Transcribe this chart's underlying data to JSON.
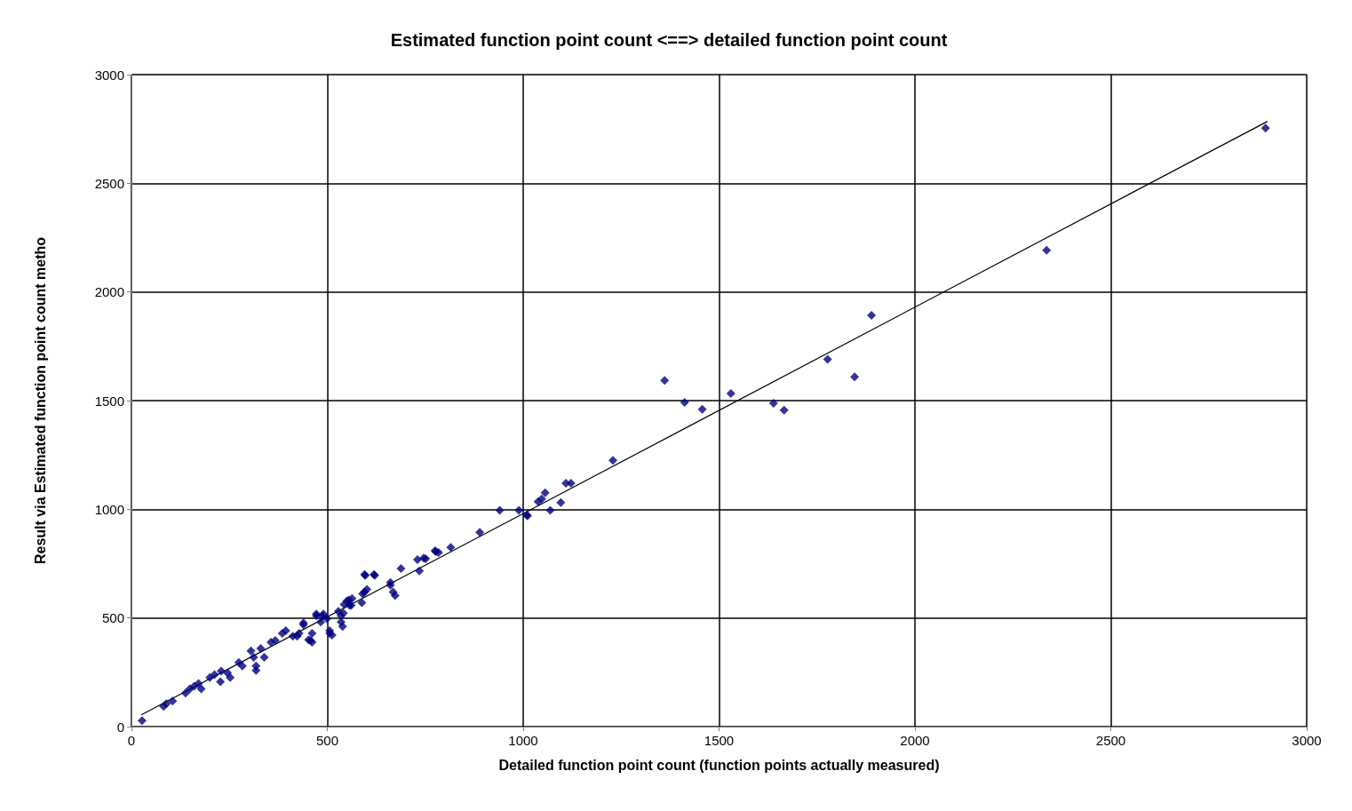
{
  "chart_data": {
    "type": "scatter",
    "title": "Estimated function point count <==> detailed function point count",
    "xlabel": "Detailed function point count (function points actually measured)",
    "ylabel": "Result via Estimated function point count metho",
    "xlim": [
      0,
      3000
    ],
    "ylim": [
      0,
      3000
    ],
    "xticks": [
      0,
      500,
      1000,
      1500,
      2000,
      2500,
      3000
    ],
    "yticks": [
      0,
      500,
      1000,
      1500,
      2000,
      2500,
      3000
    ],
    "grid": true,
    "marker": "diamond",
    "series": [
      {
        "color": "#000080",
        "x": [
          27,
          82,
          89,
          105,
          138,
          149,
          160,
          171,
          178,
          200,
          212,
          227,
          229,
          245,
          252,
          274,
          283,
          305,
          312,
          318,
          318,
          330,
          339,
          356,
          367,
          385,
          394,
          412,
          423,
          428,
          439,
          439,
          452,
          457,
          461,
          461,
          472,
          472,
          483,
          488,
          490,
          499,
          506,
          506,
          512,
          528,
          535,
          535,
          539,
          541,
          543,
          550,
          555,
          557,
          561,
          563,
          588,
          590,
          595,
          595,
          597,
          601,
          619,
          621,
          661,
          661,
          668,
          673,
          688,
          730,
          735,
          746,
          751,
          775,
          777,
          784,
          815,
          889,
          940,
          989,
          1009,
          1011,
          1038,
          1047,
          1056,
          1069,
          1096,
          1109,
          1122,
          1229,
          1361,
          1412,
          1457,
          1530,
          1639,
          1666,
          1777,
          1846,
          1889,
          2336,
          2895
        ],
        "values": [
          28,
          93,
          105,
          117,
          154,
          174,
          186,
          198,
          174,
          226,
          239,
          206,
          255,
          247,
          226,
          295,
          279,
          348,
          319,
          279,
          259,
          360,
          319,
          388,
          396,
          429,
          441,
          416,
          416,
          429,
          469,
          477,
          400,
          396,
          388,
          429,
          510,
          518,
          481,
          510,
          518,
          497,
          441,
          429,
          421,
          530,
          510,
          481,
          461,
          522,
          562,
          578,
          582,
          558,
          558,
          590,
          570,
          611,
          619,
          700,
          696,
          631,
          700,
          696,
          663,
          651,
          619,
          603,
          728,
          768,
          716,
          776,
          772,
          809,
          805,
          801,
          825,
          894,
          995,
          995,
          974,
          970,
          1035,
          1047,
          1076,
          995,
          1031,
          1120,
          1120,
          1225,
          1593,
          1492,
          1460,
          1533,
          1488,
          1456,
          1690,
          1609,
          1892,
          2192,
          2754
        ]
      },
      {
        "type": "line",
        "color": "#000000",
        "marker": "none",
        "line_style": "solid",
        "x": [
          25,
          2900
        ],
        "values": [
          54,
          2785
        ]
      }
    ]
  }
}
